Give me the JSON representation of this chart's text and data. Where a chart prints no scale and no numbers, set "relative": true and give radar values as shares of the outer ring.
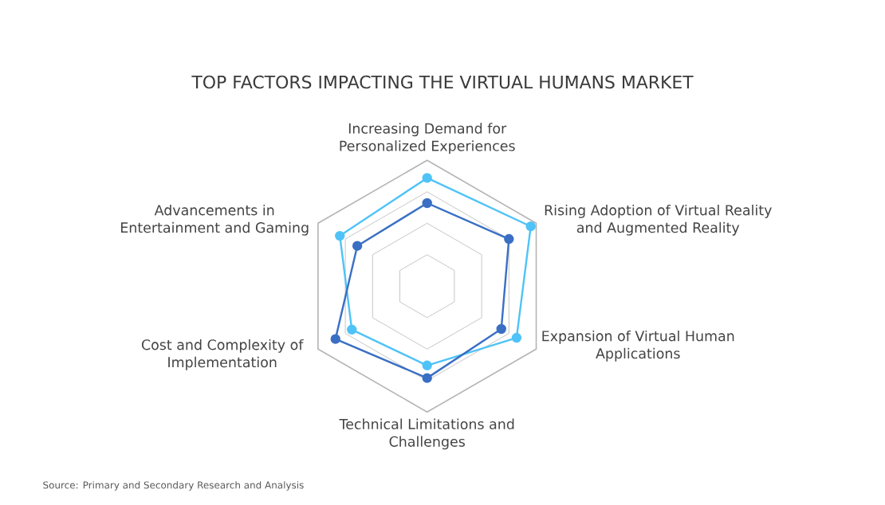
{
  "chart_data": {
    "type": "radar",
    "title": "TOP FACTORS IMPACTING THE VIRTUAL HUMANS MARKET",
    "categories": [
      "Increasing Demand for Personalized Experiences",
      "Rising Adoption of Virtual Reality and Augmented Reality",
      "Expansion of Virtual Human Applications",
      "Technical Limitations and Challenges",
      "Cost and Complexity of Implementation",
      "Advancements in Entertainment and Gaming"
    ],
    "relative": true,
    "grid": true,
    "marker": "circle",
    "line_style": "solid",
    "series": [
      {
        "color": "#4fc3f7",
        "values": [
          0.86,
          0.95,
          0.82,
          0.63,
          0.69,
          0.8
        ]
      },
      {
        "color": "#3a6fc4",
        "values": [
          0.66,
          0.75,
          0.68,
          0.73,
          0.84,
          0.64
        ]
      }
    ],
    "annotations": [
      "Source: Primary and Secondary Research and Analysis"
    ]
  }
}
